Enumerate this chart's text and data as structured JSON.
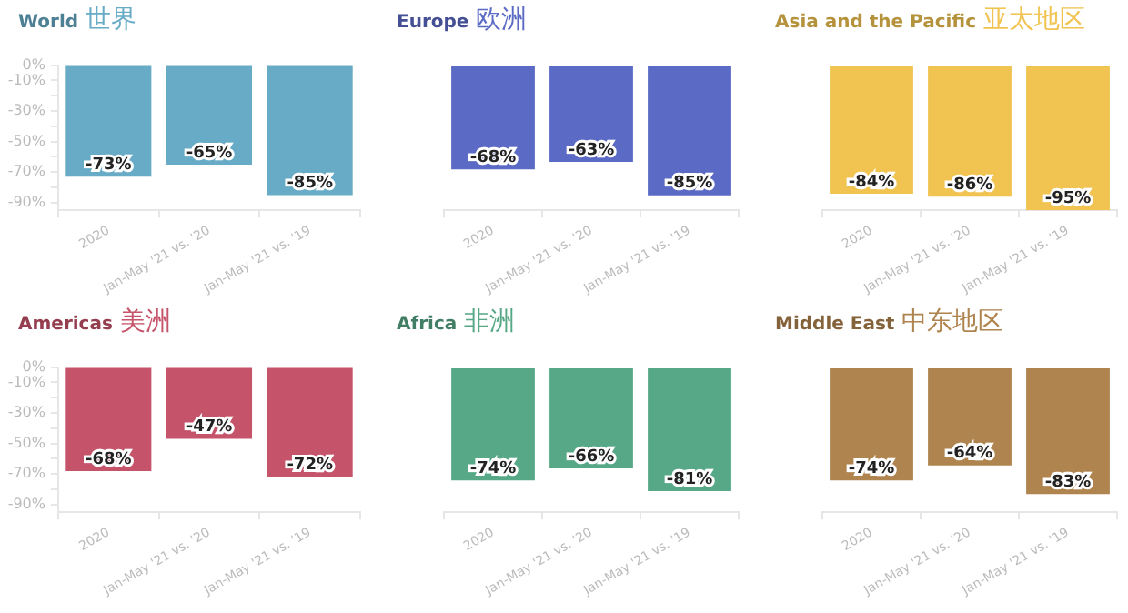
{
  "chart_data": [
    {
      "type": "bar",
      "title": "World",
      "subtitle": "世界",
      "categories": [
        "2020",
        "Jan-May '21 vs. '20",
        "Jan-May '21 vs. '19"
      ],
      "values": [
        -73,
        -65,
        -85
      ],
      "value_labels": [
        "-73%",
        "-65%",
        "-85%"
      ],
      "color": "#68abc6",
      "ylim": [
        -95,
        0
      ],
      "yticks": [
        {
          "value": 0,
          "label": "0%"
        },
        {
          "value": -10,
          "label": "-10%"
        },
        {
          "value": -20,
          "label": null
        },
        {
          "value": -30,
          "label": "-30%"
        },
        {
          "value": -40,
          "label": null
        },
        {
          "value": -50,
          "label": "-50%"
        },
        {
          "value": -60,
          "label": null
        },
        {
          "value": -70,
          "label": "-70%"
        },
        {
          "value": -80,
          "label": null
        },
        {
          "value": -90,
          "label": "-90%"
        }
      ]
    },
    {
      "type": "bar",
      "title": "Europe",
      "subtitle": "欧洲",
      "categories": [
        "2020",
        "Jan-May '21 vs. '20",
        "Jan-May '21 vs. '19"
      ],
      "values": [
        -68,
        -63,
        -85
      ],
      "value_labels": [
        "-68%",
        "-63%",
        "-85%"
      ],
      "color": "#5b6ac4",
      "ylim": [
        -95,
        0
      ],
      "tick_labels": "x"
    },
    {
      "type": "bar",
      "title": "Asia and the Pacific",
      "subtitle": "亚太地区",
      "categories": [
        "2020",
        "Jan-May '21 vs. '20",
        "Jan-May '21 vs. '19"
      ],
      "values": [
        -84,
        -86,
        -95
      ],
      "value_labels": [
        "-84%",
        "-86%",
        "-95%"
      ],
      "color": "#f1c350",
      "ylim": [
        -95,
        0
      ],
      "tick_labels": "x"
    },
    {
      "type": "bar",
      "title": "Americas",
      "subtitle": "美洲",
      "categories": [
        "2020",
        "Jan-May '21 vs. '20",
        "Jan-May '21 vs. '19"
      ],
      "values": [
        -68,
        -47,
        -72
      ],
      "value_labels": [
        "-68%",
        "-47%",
        "-72%"
      ],
      "color": "#c5536a",
      "ylim": [
        -95,
        0
      ],
      "yticks": [
        {
          "value": 0,
          "label": "0%"
        },
        {
          "value": -10,
          "label": "-10%"
        },
        {
          "value": -20,
          "label": null
        },
        {
          "value": -30,
          "label": "-30%"
        },
        {
          "value": -40,
          "label": null
        },
        {
          "value": -50,
          "label": "-50%"
        },
        {
          "value": -60,
          "label": null
        },
        {
          "value": -70,
          "label": "-70%"
        },
        {
          "value": -80,
          "label": null
        },
        {
          "value": -90,
          "label": "-90%"
        }
      ]
    },
    {
      "type": "bar",
      "title": "Africa",
      "subtitle": "非洲",
      "categories": [
        "2020",
        "Jan-May '21 vs. '20",
        "Jan-May '21 vs. '19"
      ],
      "values": [
        -74,
        -66,
        -81
      ],
      "value_labels": [
        "-74%",
        "-66%",
        "-81%"
      ],
      "color": "#57a886",
      "ylim": [
        -95,
        0
      ],
      "tick_labels": "x"
    },
    {
      "type": "bar",
      "title": "Middle East",
      "subtitle": "中东地区",
      "categories": [
        "2020",
        "Jan-May '21 vs. '20",
        "Jan-May '21 vs. '19"
      ],
      "values": [
        -74,
        -64,
        -83
      ],
      "value_labels": [
        "-74%",
        "-64%",
        "-83%"
      ],
      "color": "#b0844f",
      "ylim": [
        -95,
        0
      ],
      "tick_labels": "x"
    }
  ]
}
